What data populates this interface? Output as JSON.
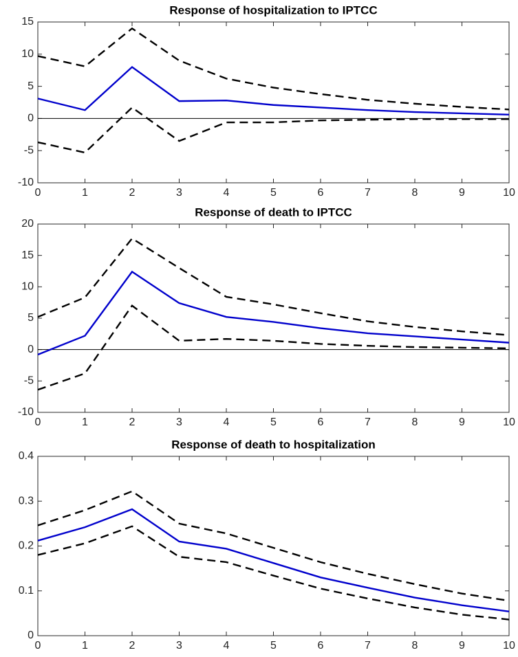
{
  "chart_data": [
    {
      "type": "line",
      "title": "Response of hospitalization to IPTCC",
      "x": [
        0,
        1,
        2,
        3,
        4,
        5,
        6,
        7,
        8,
        9,
        10
      ],
      "xlim": [
        0,
        10
      ],
      "xticks": [
        0,
        1,
        2,
        3,
        4,
        5,
        6,
        7,
        8,
        9,
        10
      ],
      "ylim": [
        -10,
        15
      ],
      "yticks": [
        -10,
        -5,
        0,
        5,
        10,
        15
      ],
      "zero_line": true,
      "series": [
        {
          "color": "#0000cc",
          "style": "solid",
          "values": [
            3.1,
            1.3,
            8.0,
            2.7,
            2.8,
            2.1,
            1.7,
            1.3,
            1.0,
            0.8,
            0.6
          ]
        },
        {
          "color": "#000000",
          "style": "dashed",
          "values": [
            9.7,
            8.1,
            14.0,
            9.0,
            6.2,
            4.8,
            3.8,
            2.9,
            2.3,
            1.8,
            1.4
          ]
        },
        {
          "color": "#000000",
          "style": "dashed",
          "values": [
            -3.7,
            -5.3,
            1.7,
            -3.5,
            -0.6,
            -0.6,
            -0.3,
            -0.2,
            -0.1,
            -0.1,
            -0.1
          ]
        }
      ]
    },
    {
      "type": "line",
      "title": "Response of death to IPTCC",
      "x": [
        0,
        1,
        2,
        3,
        4,
        5,
        6,
        7,
        8,
        9,
        10
      ],
      "xlim": [
        0,
        10
      ],
      "xticks": [
        0,
        1,
        2,
        3,
        4,
        5,
        6,
        7,
        8,
        9,
        10
      ],
      "ylim": [
        -10,
        20
      ],
      "yticks": [
        -10,
        -5,
        0,
        5,
        10,
        15,
        20
      ],
      "zero_line": true,
      "series": [
        {
          "color": "#0000cc",
          "style": "solid",
          "values": [
            -0.8,
            2.2,
            12.4,
            7.4,
            5.2,
            4.4,
            3.4,
            2.6,
            2.1,
            1.6,
            1.1
          ]
        },
        {
          "color": "#000000",
          "style": "dashed",
          "values": [
            5.2,
            8.3,
            17.7,
            13.0,
            8.4,
            7.2,
            5.8,
            4.5,
            3.6,
            2.9,
            2.3
          ]
        },
        {
          "color": "#000000",
          "style": "dashed",
          "values": [
            -6.4,
            -3.8,
            7.0,
            1.4,
            1.7,
            1.4,
            0.9,
            0.6,
            0.4,
            0.3,
            0.2
          ]
        }
      ]
    },
    {
      "type": "line",
      "title": "Response of death to hospitalization",
      "x": [
        0,
        1,
        2,
        3,
        4,
        5,
        6,
        7,
        8,
        9,
        10
      ],
      "xlim": [
        0,
        10
      ],
      "xticks": [
        0,
        1,
        2,
        3,
        4,
        5,
        6,
        7,
        8,
        9,
        10
      ],
      "ylim": [
        0,
        0.4
      ],
      "yticks": [
        0,
        0.1,
        0.2,
        0.3,
        0.4
      ],
      "zero_line": false,
      "series": [
        {
          "color": "#0000cc",
          "style": "solid",
          "values": [
            0.212,
            0.242,
            0.282,
            0.21,
            0.194,
            0.162,
            0.13,
            0.107,
            0.085,
            0.068,
            0.054
          ]
        },
        {
          "color": "#000000",
          "style": "dashed",
          "values": [
            0.246,
            0.28,
            0.322,
            0.25,
            0.228,
            0.196,
            0.164,
            0.138,
            0.115,
            0.094,
            0.078
          ]
        },
        {
          "color": "#000000",
          "style": "dashed",
          "values": [
            0.18,
            0.206,
            0.244,
            0.176,
            0.164,
            0.134,
            0.105,
            0.083,
            0.063,
            0.047,
            0.036
          ]
        }
      ]
    }
  ]
}
